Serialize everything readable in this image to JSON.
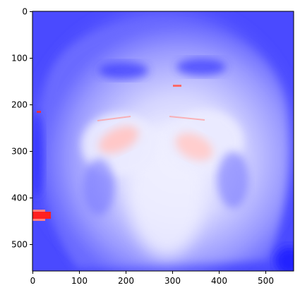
{
  "figure": {
    "x_ticks": [
      "0",
      "100",
      "200",
      "300",
      "400",
      "500"
    ],
    "y_ticks": [
      "0",
      "100",
      "200",
      "300",
      "400",
      "500"
    ],
    "colormap_name": "bwr",
    "colors": {
      "blue": "#4040ff",
      "white": "#ffffff",
      "red": "#ff0000",
      "axis": "#000000"
    },
    "image_extent": {
      "x_range": [
        0,
        560
      ],
      "y_range": [
        0,
        560
      ]
    }
  }
}
